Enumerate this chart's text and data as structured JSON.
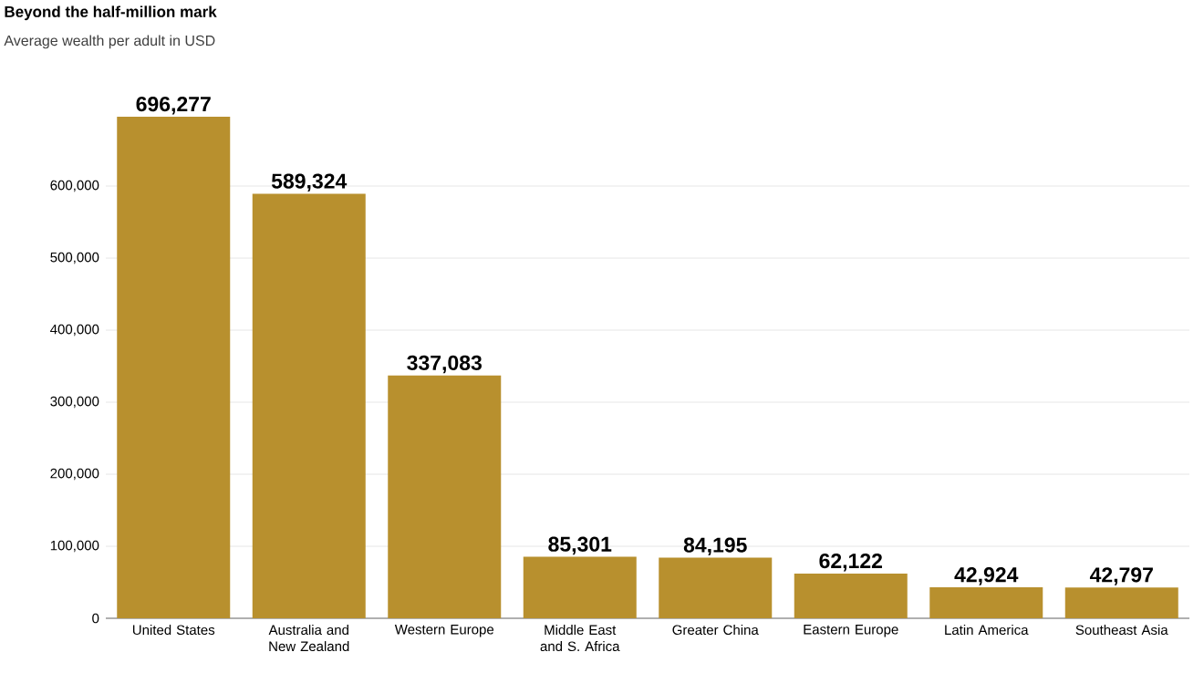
{
  "chart_data": {
    "type": "bar",
    "title": "Beyond the half-million mark",
    "subtitle": "Average wealth per adult in USD",
    "categories": [
      "United States",
      "Australia and New Zealand",
      "Western Europe",
      "Middle East and S. Africa",
      "Greater China",
      "Eastern Europe",
      "Latin America",
      "Southeast Asia"
    ],
    "values": [
      696277,
      589324,
      337083,
      85301,
      84195,
      62122,
      42924,
      42797
    ],
    "value_labels": [
      "696,277",
      "589,324",
      "337,083",
      "85,301",
      "84,195",
      "62,122",
      "42,924",
      "42,797"
    ],
    "color": "#b8902e",
    "yticks": [
      {
        "value": 0,
        "label": "0"
      },
      {
        "value": 100000,
        "label": "100,000"
      },
      {
        "value": 200000,
        "label": "200,000"
      },
      {
        "value": 300000,
        "label": "300,000"
      },
      {
        "value": 400000,
        "label": "400,000"
      },
      {
        "value": 500000,
        "label": "500,000"
      },
      {
        "value": 600000,
        "label": "600,000"
      }
    ],
    "ylim": [
      0,
      700000
    ],
    "grid": "y"
  }
}
